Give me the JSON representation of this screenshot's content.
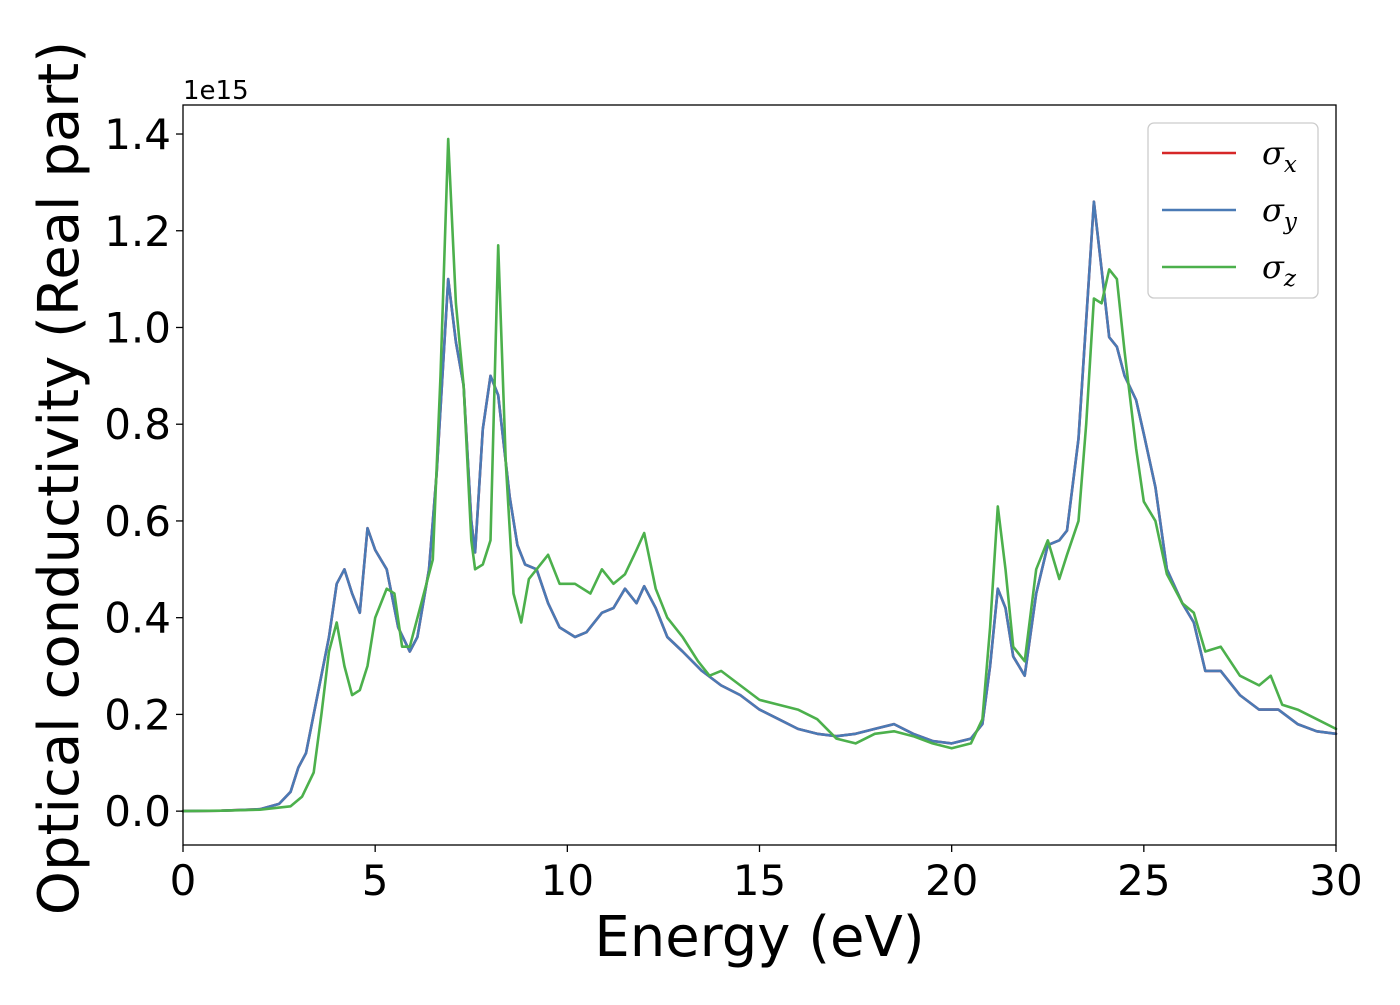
{
  "chart_data": {
    "type": "line",
    "xlabel": "Energy (eV)",
    "ylabel": "Optical conductivity (Real part)",
    "y_offset_label": "1e15",
    "xlim": [
      0,
      30
    ],
    "ylim": [
      -0.07,
      1.46
    ],
    "x_ticks": [
      0,
      5,
      10,
      15,
      20,
      25,
      30
    ],
    "x_tick_labels": [
      "0",
      "5",
      "10",
      "15",
      "20",
      "25",
      "30"
    ],
    "y_ticks": [
      0.0,
      0.2,
      0.4,
      0.6,
      0.8,
      1.0,
      1.2,
      1.4
    ],
    "y_tick_labels": [
      "0.0",
      "0.2",
      "0.4",
      "0.6",
      "0.8",
      "1.0",
      "1.2",
      "1.4"
    ],
    "grid": false,
    "legend_position": "top-right",
    "colors": {
      "sigma_x": "#d62728",
      "sigma_y": "#4a7ab5",
      "sigma_z": "#4cb04c"
    },
    "series": [
      {
        "name": "σx",
        "label_base": "σ",
        "label_sub": "x",
        "color": "#d62728",
        "points": [
          [
            0,
            0
          ],
          [
            1,
            0.001
          ],
          [
            2,
            0.004
          ],
          [
            2.5,
            0.015
          ],
          [
            2.8,
            0.04
          ],
          [
            3.0,
            0.09
          ],
          [
            3.2,
            0.12
          ],
          [
            3.5,
            0.24
          ],
          [
            3.8,
            0.36
          ],
          [
            4.0,
            0.47
          ],
          [
            4.2,
            0.5
          ],
          [
            4.4,
            0.45
          ],
          [
            4.6,
            0.41
          ],
          [
            4.8,
            0.585
          ],
          [
            5.0,
            0.54
          ],
          [
            5.3,
            0.5
          ],
          [
            5.6,
            0.38
          ],
          [
            5.9,
            0.33
          ],
          [
            6.1,
            0.36
          ],
          [
            6.4,
            0.5
          ],
          [
            6.6,
            0.7
          ],
          [
            6.9,
            1.1
          ],
          [
            7.1,
            0.97
          ],
          [
            7.3,
            0.88
          ],
          [
            7.5,
            0.6
          ],
          [
            7.6,
            0.535
          ],
          [
            7.8,
            0.79
          ],
          [
            8.0,
            0.9
          ],
          [
            8.2,
            0.86
          ],
          [
            8.5,
            0.65
          ],
          [
            8.7,
            0.55
          ],
          [
            8.9,
            0.51
          ],
          [
            9.2,
            0.5
          ],
          [
            9.5,
            0.43
          ],
          [
            9.8,
            0.38
          ],
          [
            10.2,
            0.36
          ],
          [
            10.5,
            0.37
          ],
          [
            10.9,
            0.41
          ],
          [
            11.2,
            0.42
          ],
          [
            11.5,
            0.46
          ],
          [
            11.8,
            0.43
          ],
          [
            12.0,
            0.465
          ],
          [
            12.3,
            0.42
          ],
          [
            12.6,
            0.36
          ],
          [
            13.0,
            0.33
          ],
          [
            13.5,
            0.29
          ],
          [
            14.0,
            0.26
          ],
          [
            14.5,
            0.24
          ],
          [
            15.0,
            0.21
          ],
          [
            15.5,
            0.19
          ],
          [
            16.0,
            0.17
          ],
          [
            16.5,
            0.16
          ],
          [
            17.0,
            0.155
          ],
          [
            17.5,
            0.16
          ],
          [
            18.0,
            0.17
          ],
          [
            18.5,
            0.18
          ],
          [
            19.0,
            0.16
          ],
          [
            19.5,
            0.145
          ],
          [
            20.0,
            0.14
          ],
          [
            20.5,
            0.15
          ],
          [
            20.8,
            0.18
          ],
          [
            21.0,
            0.3
          ],
          [
            21.2,
            0.46
          ],
          [
            21.4,
            0.42
          ],
          [
            21.6,
            0.32
          ],
          [
            21.9,
            0.28
          ],
          [
            22.2,
            0.45
          ],
          [
            22.5,
            0.55
          ],
          [
            22.8,
            0.56
          ],
          [
            23.0,
            0.58
          ],
          [
            23.3,
            0.77
          ],
          [
            23.7,
            1.26
          ],
          [
            23.9,
            1.12
          ],
          [
            24.1,
            0.98
          ],
          [
            24.3,
            0.96
          ],
          [
            24.5,
            0.9
          ],
          [
            24.8,
            0.85
          ],
          [
            25.0,
            0.78
          ],
          [
            25.3,
            0.67
          ],
          [
            25.6,
            0.5
          ],
          [
            26.0,
            0.43
          ],
          [
            26.3,
            0.39
          ],
          [
            26.6,
            0.29
          ],
          [
            27.0,
            0.29
          ],
          [
            27.5,
            0.24
          ],
          [
            28.0,
            0.21
          ],
          [
            28.5,
            0.21
          ],
          [
            29.0,
            0.18
          ],
          [
            29.5,
            0.165
          ],
          [
            30,
            0.16
          ]
        ]
      },
      {
        "name": "σy",
        "label_base": "σ",
        "label_sub": "y",
        "color": "#4a7ab5",
        "points": [
          [
            0,
            0
          ],
          [
            1,
            0.001
          ],
          [
            2,
            0.004
          ],
          [
            2.5,
            0.015
          ],
          [
            2.8,
            0.04
          ],
          [
            3.0,
            0.09
          ],
          [
            3.2,
            0.12
          ],
          [
            3.5,
            0.24
          ],
          [
            3.8,
            0.36
          ],
          [
            4.0,
            0.47
          ],
          [
            4.2,
            0.5
          ],
          [
            4.4,
            0.45
          ],
          [
            4.6,
            0.41
          ],
          [
            4.8,
            0.585
          ],
          [
            5.0,
            0.54
          ],
          [
            5.3,
            0.5
          ],
          [
            5.6,
            0.38
          ],
          [
            5.9,
            0.33
          ],
          [
            6.1,
            0.36
          ],
          [
            6.4,
            0.5
          ],
          [
            6.6,
            0.7
          ],
          [
            6.9,
            1.1
          ],
          [
            7.1,
            0.97
          ],
          [
            7.3,
            0.88
          ],
          [
            7.5,
            0.6
          ],
          [
            7.6,
            0.535
          ],
          [
            7.8,
            0.79
          ],
          [
            8.0,
            0.9
          ],
          [
            8.2,
            0.86
          ],
          [
            8.5,
            0.65
          ],
          [
            8.7,
            0.55
          ],
          [
            8.9,
            0.51
          ],
          [
            9.2,
            0.5
          ],
          [
            9.5,
            0.43
          ],
          [
            9.8,
            0.38
          ],
          [
            10.2,
            0.36
          ],
          [
            10.5,
            0.37
          ],
          [
            10.9,
            0.41
          ],
          [
            11.2,
            0.42
          ],
          [
            11.5,
            0.46
          ],
          [
            11.8,
            0.43
          ],
          [
            12.0,
            0.465
          ],
          [
            12.3,
            0.42
          ],
          [
            12.6,
            0.36
          ],
          [
            13.0,
            0.33
          ],
          [
            13.5,
            0.29
          ],
          [
            14.0,
            0.26
          ],
          [
            14.5,
            0.24
          ],
          [
            15.0,
            0.21
          ],
          [
            15.5,
            0.19
          ],
          [
            16.0,
            0.17
          ],
          [
            16.5,
            0.16
          ],
          [
            17.0,
            0.155
          ],
          [
            17.5,
            0.16
          ],
          [
            18.0,
            0.17
          ],
          [
            18.5,
            0.18
          ],
          [
            19.0,
            0.16
          ],
          [
            19.5,
            0.145
          ],
          [
            20.0,
            0.14
          ],
          [
            20.5,
            0.15
          ],
          [
            20.8,
            0.18
          ],
          [
            21.0,
            0.3
          ],
          [
            21.2,
            0.46
          ],
          [
            21.4,
            0.42
          ],
          [
            21.6,
            0.32
          ],
          [
            21.9,
            0.28
          ],
          [
            22.2,
            0.45
          ],
          [
            22.5,
            0.55
          ],
          [
            22.8,
            0.56
          ],
          [
            23.0,
            0.58
          ],
          [
            23.3,
            0.77
          ],
          [
            23.7,
            1.26
          ],
          [
            23.9,
            1.12
          ],
          [
            24.1,
            0.98
          ],
          [
            24.3,
            0.96
          ],
          [
            24.5,
            0.9
          ],
          [
            24.8,
            0.85
          ],
          [
            25.0,
            0.78
          ],
          [
            25.3,
            0.67
          ],
          [
            25.6,
            0.5
          ],
          [
            26.0,
            0.43
          ],
          [
            26.3,
            0.39
          ],
          [
            26.6,
            0.29
          ],
          [
            27.0,
            0.29
          ],
          [
            27.5,
            0.24
          ],
          [
            28.0,
            0.21
          ],
          [
            28.5,
            0.21
          ],
          [
            29.0,
            0.18
          ],
          [
            29.5,
            0.165
          ],
          [
            30,
            0.16
          ]
        ]
      },
      {
        "name": "σz",
        "label_base": "σ",
        "label_sub": "z",
        "color": "#4cb04c",
        "points": [
          [
            0,
            0
          ],
          [
            1,
            0.001
          ],
          [
            2,
            0.003
          ],
          [
            2.8,
            0.01
          ],
          [
            3.1,
            0.03
          ],
          [
            3.4,
            0.08
          ],
          [
            3.6,
            0.2
          ],
          [
            3.8,
            0.33
          ],
          [
            4.0,
            0.39
          ],
          [
            4.2,
            0.3
          ],
          [
            4.4,
            0.24
          ],
          [
            4.6,
            0.25
          ],
          [
            4.8,
            0.3
          ],
          [
            5.0,
            0.4
          ],
          [
            5.3,
            0.46
          ],
          [
            5.5,
            0.45
          ],
          [
            5.7,
            0.34
          ],
          [
            5.9,
            0.34
          ],
          [
            6.2,
            0.43
          ],
          [
            6.5,
            0.52
          ],
          [
            6.7,
            0.9
          ],
          [
            6.9,
            1.39
          ],
          [
            7.1,
            1.05
          ],
          [
            7.3,
            0.88
          ],
          [
            7.5,
            0.56
          ],
          [
            7.6,
            0.5
          ],
          [
            7.8,
            0.51
          ],
          [
            8.0,
            0.56
          ],
          [
            8.2,
            1.17
          ],
          [
            8.4,
            0.72
          ],
          [
            8.6,
            0.45
          ],
          [
            8.8,
            0.39
          ],
          [
            9.0,
            0.48
          ],
          [
            9.2,
            0.5
          ],
          [
            9.5,
            0.53
          ],
          [
            9.8,
            0.47
          ],
          [
            10.2,
            0.47
          ],
          [
            10.6,
            0.45
          ],
          [
            10.9,
            0.5
          ],
          [
            11.2,
            0.47
          ],
          [
            11.5,
            0.49
          ],
          [
            11.8,
            0.54
          ],
          [
            12.0,
            0.575
          ],
          [
            12.3,
            0.46
          ],
          [
            12.6,
            0.4
          ],
          [
            13.0,
            0.36
          ],
          [
            13.4,
            0.31
          ],
          [
            13.7,
            0.28
          ],
          [
            14.0,
            0.29
          ],
          [
            14.5,
            0.26
          ],
          [
            15.0,
            0.23
          ],
          [
            15.5,
            0.22
          ],
          [
            16.0,
            0.21
          ],
          [
            16.5,
            0.19
          ],
          [
            17.0,
            0.15
          ],
          [
            17.5,
            0.14
          ],
          [
            18.0,
            0.16
          ],
          [
            18.5,
            0.165
          ],
          [
            19.0,
            0.155
          ],
          [
            19.5,
            0.14
          ],
          [
            20.0,
            0.13
          ],
          [
            20.5,
            0.14
          ],
          [
            20.8,
            0.19
          ],
          [
            21.0,
            0.38
          ],
          [
            21.2,
            0.63
          ],
          [
            21.4,
            0.5
          ],
          [
            21.6,
            0.34
          ],
          [
            21.9,
            0.31
          ],
          [
            22.2,
            0.5
          ],
          [
            22.5,
            0.56
          ],
          [
            22.8,
            0.48
          ],
          [
            23.0,
            0.53
          ],
          [
            23.3,
            0.6
          ],
          [
            23.5,
            0.8
          ],
          [
            23.7,
            1.06
          ],
          [
            23.9,
            1.05
          ],
          [
            24.1,
            1.12
          ],
          [
            24.3,
            1.1
          ],
          [
            24.5,
            0.95
          ],
          [
            24.8,
            0.75
          ],
          [
            25.0,
            0.64
          ],
          [
            25.3,
            0.6
          ],
          [
            25.6,
            0.49
          ],
          [
            26.0,
            0.43
          ],
          [
            26.3,
            0.41
          ],
          [
            26.6,
            0.33
          ],
          [
            27.0,
            0.34
          ],
          [
            27.5,
            0.28
          ],
          [
            28.0,
            0.26
          ],
          [
            28.3,
            0.28
          ],
          [
            28.6,
            0.22
          ],
          [
            29.0,
            0.21
          ],
          [
            29.5,
            0.19
          ],
          [
            30,
            0.17
          ]
        ]
      }
    ]
  }
}
